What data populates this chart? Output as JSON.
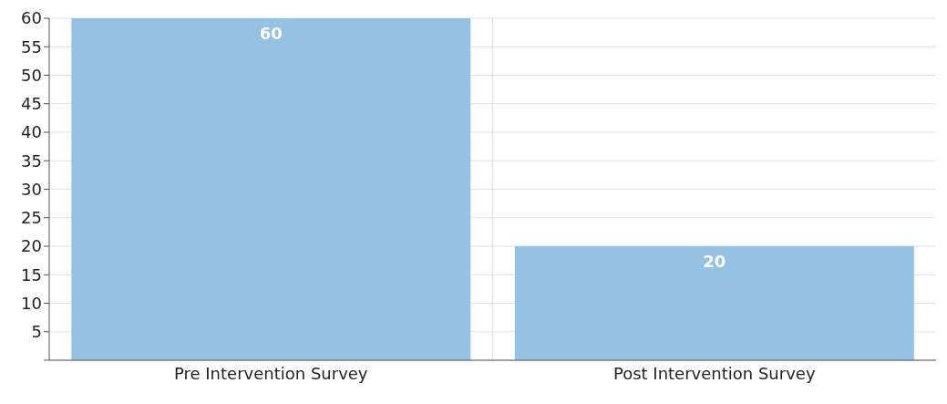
{
  "chart_data": {
    "type": "bar",
    "categories": [
      "Pre Intervention Survey",
      "Post Intervention Survey"
    ],
    "values": [
      60,
      20
    ],
    "color": "#95c2e3",
    "ylim": [
      0,
      60
    ],
    "yticks": [
      {
        "value": 0,
        "label": null
      },
      5,
      10,
      15,
      20,
      25,
      30,
      35,
      40,
      45,
      50,
      55,
      60
    ],
    "grid": true,
    "data_labels": true
  }
}
